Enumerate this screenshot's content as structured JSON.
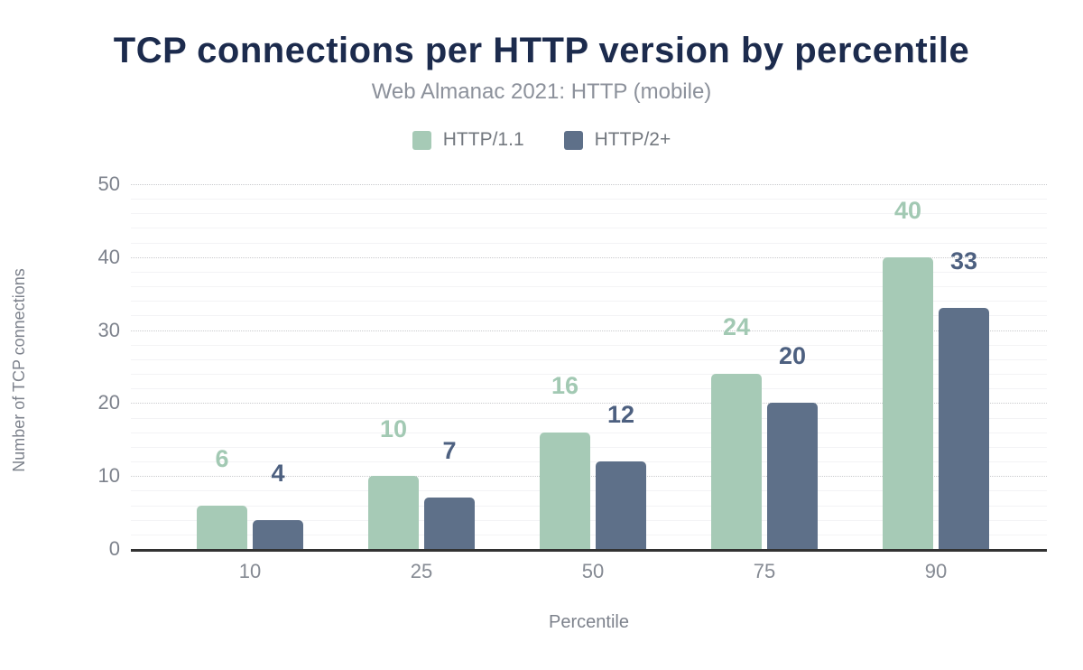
{
  "title": "TCP connections per HTTP version by percentile",
  "subtitle": "Web Almanac 2021: HTTP (mobile)",
  "x_axis_title": "Percentile",
  "y_axis_title": "Number of TCP connections",
  "colors": {
    "title_text": "#1c2b4d",
    "subtitle_text": "#8c919b",
    "axis_text": "#7d828c",
    "axis_line": "#323232",
    "grid_major": "#c9cacd",
    "grid_minor": "#f3f3f5",
    "background": "#ffffff"
  },
  "chart_data": {
    "type": "bar",
    "categories": [
      "10",
      "25",
      "50",
      "75",
      "90"
    ],
    "series": [
      {
        "name": "HTTP/1.1",
        "color": "#a6cab6",
        "label_color": "#a2c9b3",
        "values": [
          6,
          10,
          16,
          24,
          40
        ]
      },
      {
        "name": "HTTP/2+",
        "color": "#5e7089",
        "label_color": "#4d6080",
        "values": [
          4,
          7,
          12,
          20,
          33
        ]
      }
    ],
    "title": "TCP connections per HTTP version by percentile",
    "subtitle": "Web Almanac 2021: HTTP (mobile)",
    "xlabel": "Percentile",
    "ylabel": "Number of TCP connections",
    "ylim": [
      0,
      50
    ],
    "yticks": [
      0,
      10,
      20,
      30,
      40,
      50
    ],
    "minor_gridline_step": 2,
    "grid": "on",
    "legend_position": "top",
    "bar_value_labels_shown": true
  }
}
